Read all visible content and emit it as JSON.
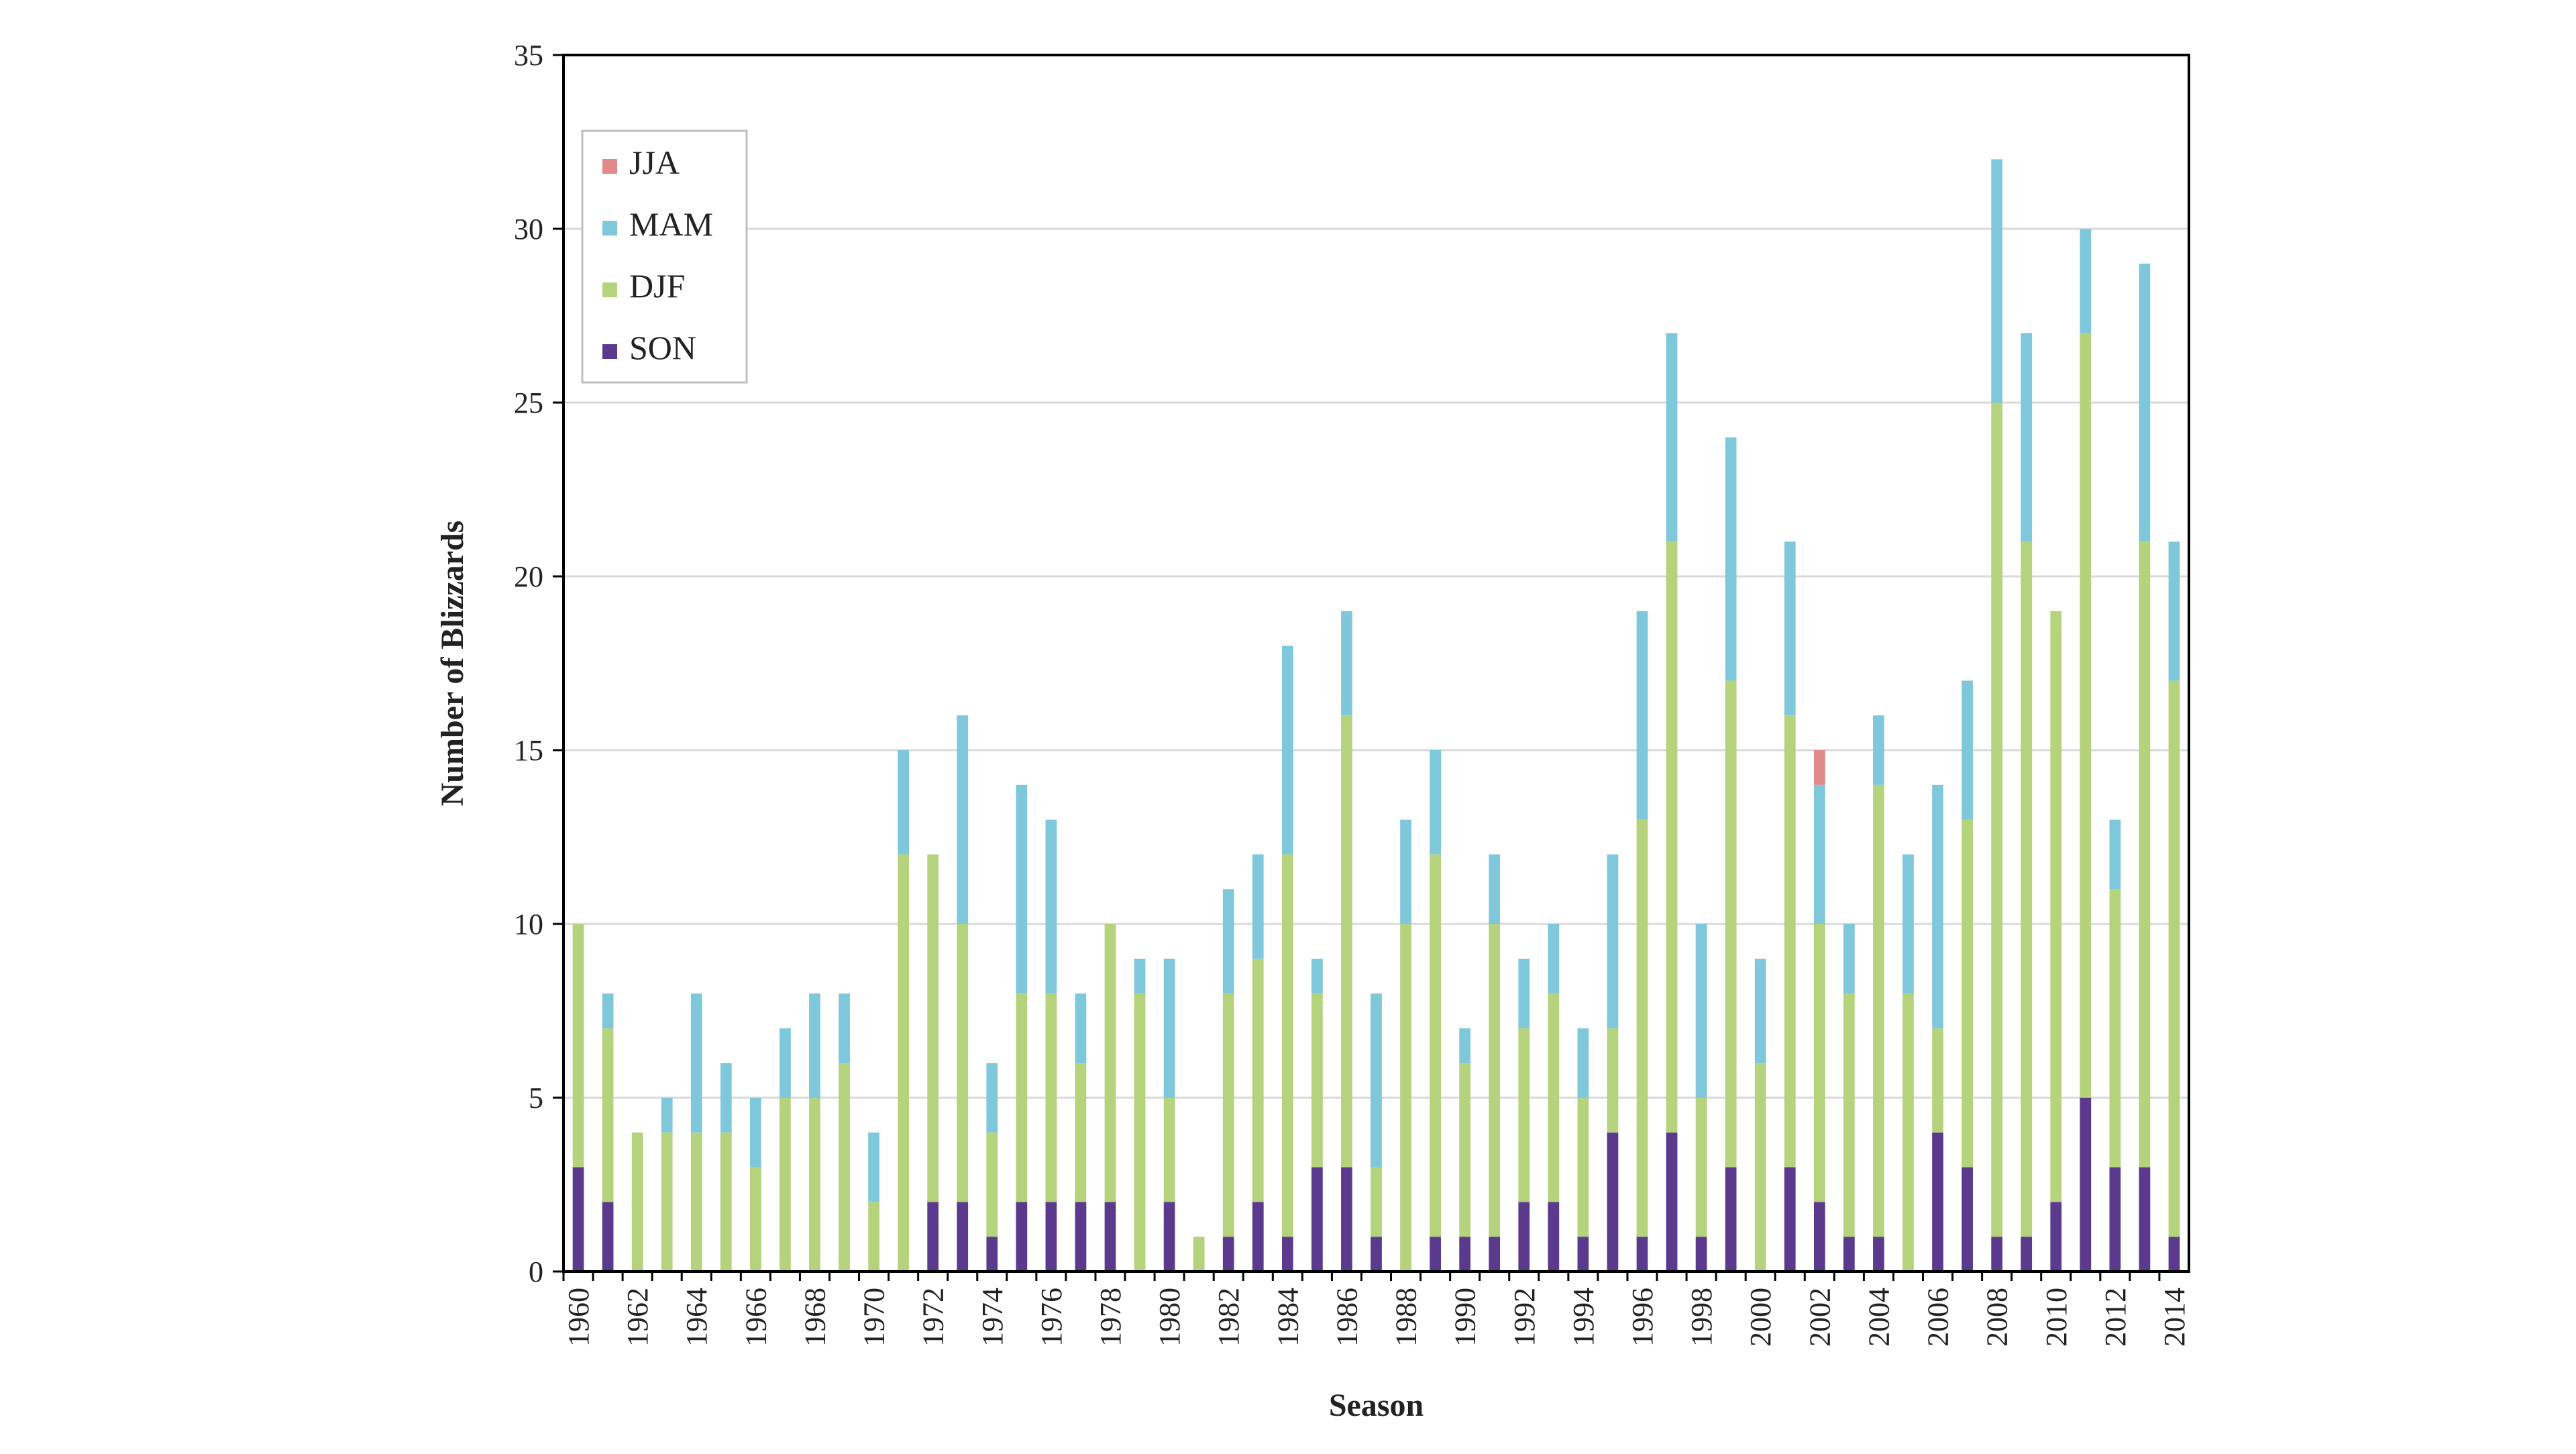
{
  "chart_data": {
    "type": "bar",
    "stacked": true,
    "xlabel": "Season",
    "ylabel": "Number of Blizzards",
    "ylim": [
      0,
      35
    ],
    "y_ticks": [
      0,
      5,
      10,
      15,
      20,
      25,
      30,
      35
    ],
    "grid": "horizontal",
    "legend_position": "top-left",
    "years": [
      1960,
      1961,
      1962,
      1963,
      1964,
      1965,
      1966,
      1967,
      1968,
      1969,
      1970,
      1971,
      1972,
      1973,
      1974,
      1975,
      1976,
      1977,
      1978,
      1979,
      1980,
      1981,
      1982,
      1983,
      1984,
      1985,
      1986,
      1987,
      1988,
      1989,
      1990,
      1991,
      1992,
      1993,
      1994,
      1995,
      1996,
      1997,
      1998,
      1999,
      2000,
      2001,
      2002,
      2003,
      2004,
      2005,
      2006,
      2007,
      2008,
      2009,
      2010,
      2011,
      2012,
      2013,
      2014
    ],
    "x_tick_labels": [
      "1960",
      "1962",
      "1964",
      "1966",
      "1968",
      "1970",
      "1972",
      "1974",
      "1976",
      "1978",
      "1980",
      "1982",
      "1984",
      "1986",
      "1988",
      "1990",
      "1992",
      "1994",
      "1996",
      "1998",
      "2000",
      "2002",
      "2004",
      "2006",
      "2008",
      "2010",
      "2012",
      "2014"
    ],
    "legend_order": [
      "JJA",
      "MAM",
      "DJF",
      "SON"
    ],
    "series": [
      {
        "name": "SON",
        "color": "#5b3a8e",
        "values": [
          3,
          2,
          0,
          0,
          0,
          0,
          0,
          0,
          0,
          0,
          0,
          0,
          2,
          2,
          1,
          2,
          2,
          2,
          2,
          0,
          2,
          0,
          1,
          2,
          1,
          3,
          3,
          1,
          0,
          1,
          1,
          1,
          2,
          2,
          1,
          4,
          1,
          4,
          1,
          3,
          0,
          3,
          2,
          1,
          1,
          0,
          4,
          3,
          1,
          1,
          2,
          5,
          3,
          3,
          1
        ]
      },
      {
        "name": "DJF",
        "color": "#b5d27c",
        "values": [
          7,
          5,
          4,
          4,
          4,
          4,
          3,
          5,
          5,
          6,
          2,
          12,
          10,
          8,
          3,
          6,
          6,
          4,
          8,
          8,
          3,
          1,
          7,
          7,
          11,
          5,
          13,
          2,
          10,
          11,
          5,
          9,
          5,
          6,
          4,
          3,
          12,
          17,
          4,
          14,
          6,
          13,
          8,
          7,
          13,
          8,
          3,
          10,
          24,
          20,
          17,
          22,
          8,
          18,
          16
        ]
      },
      {
        "name": "MAM",
        "color": "#7fc8dc",
        "values": [
          0,
          1,
          0,
          1,
          4,
          2,
          2,
          2,
          3,
          2,
          2,
          3,
          0,
          6,
          2,
          6,
          5,
          2,
          0,
          1,
          4,
          0,
          3,
          3,
          6,
          1,
          3,
          5,
          3,
          3,
          1,
          2,
          2,
          2,
          2,
          5,
          6,
          6,
          5,
          7,
          3,
          5,
          4,
          2,
          2,
          4,
          7,
          4,
          7,
          6,
          0,
          3,
          2,
          8,
          4
        ]
      },
      {
        "name": "JJA",
        "color": "#e08a8a",
        "values": [
          0,
          0,
          0,
          0,
          0,
          0,
          0,
          0,
          0,
          0,
          0,
          0,
          0,
          0,
          0,
          0,
          0,
          0,
          0,
          0,
          0,
          0,
          0,
          0,
          0,
          0,
          0,
          0,
          0,
          0,
          0,
          0,
          0,
          0,
          0,
          0,
          0,
          0,
          0,
          0,
          0,
          0,
          1,
          0,
          0,
          0,
          0,
          0,
          0,
          0,
          0,
          0,
          0,
          0,
          0
        ]
      }
    ]
  }
}
